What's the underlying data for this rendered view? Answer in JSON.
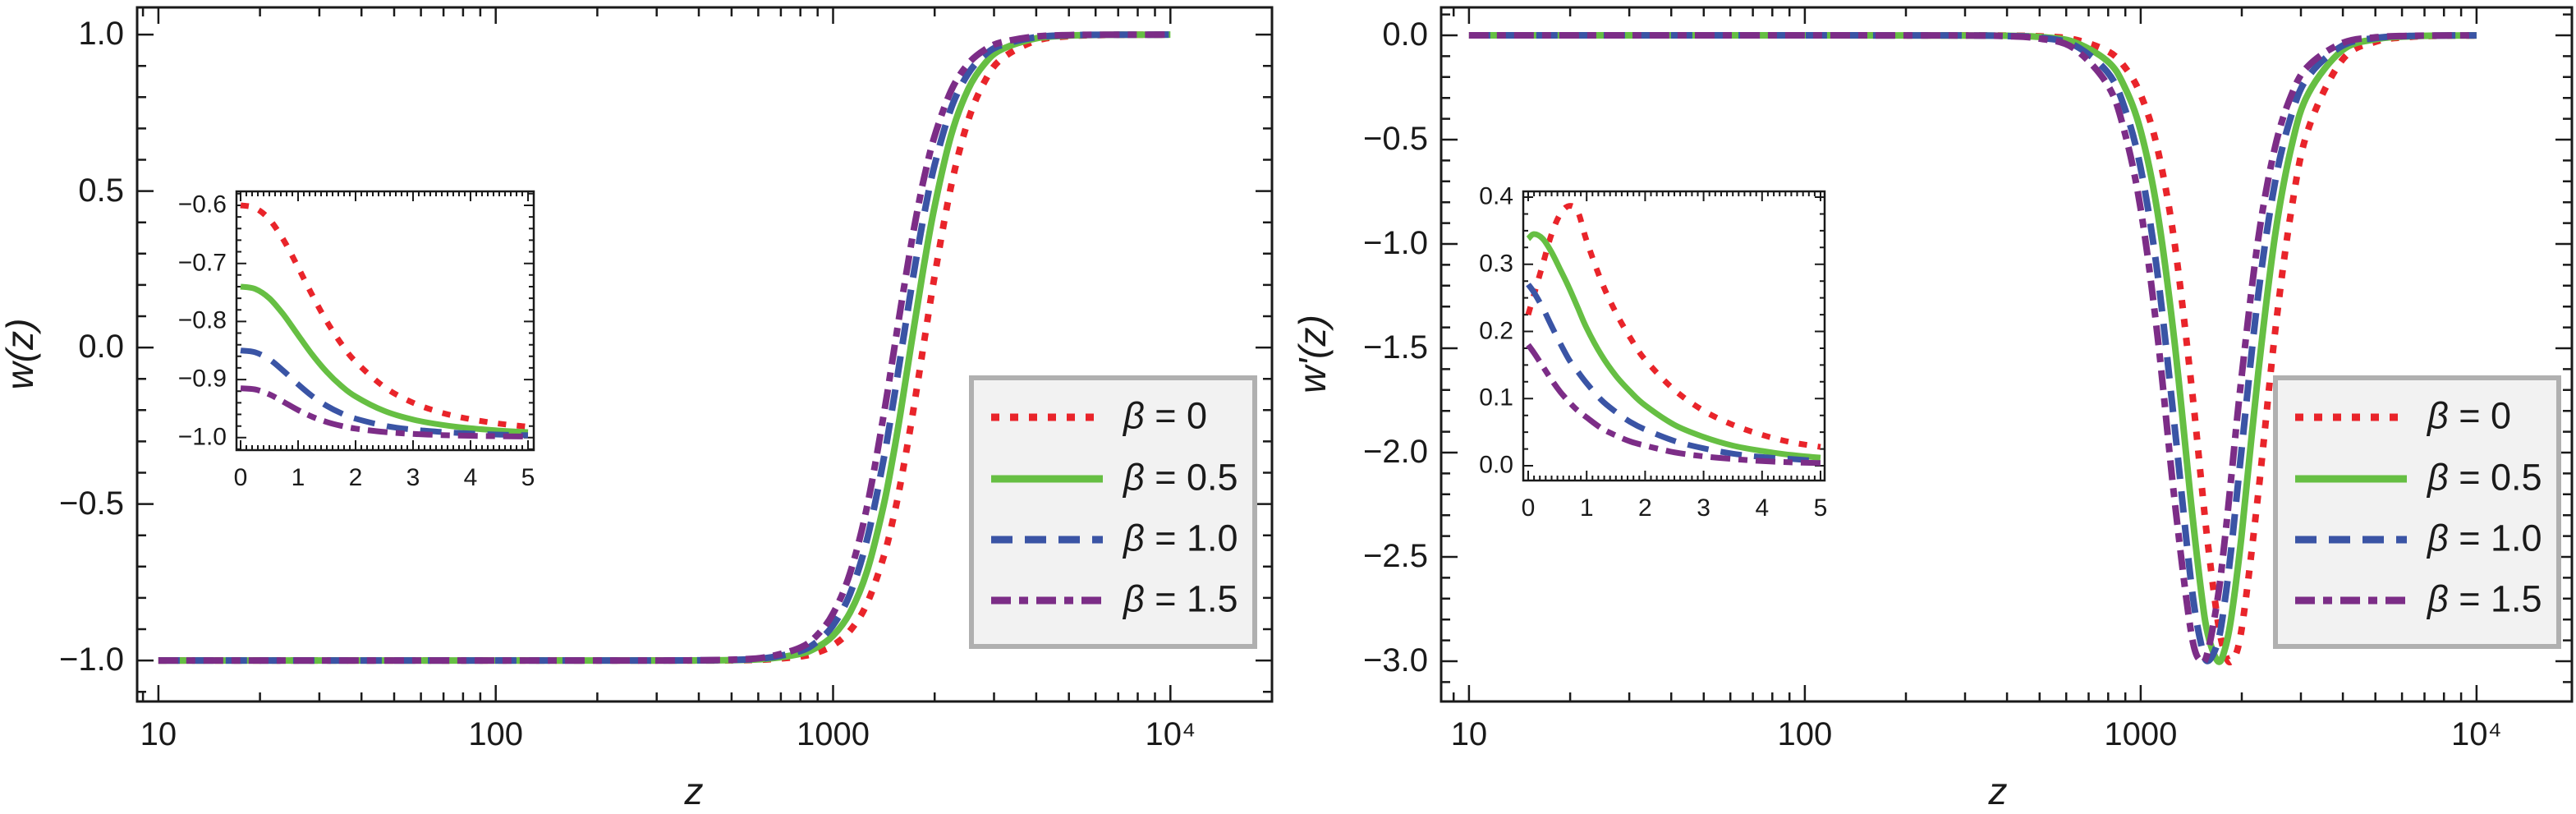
{
  "figure": {
    "background": "#ffffff",
    "ink": "#1a1a1a",
    "legend_bg": "#f2f2f2",
    "legend_border": "#b0b0b0",
    "series_labels": [
      "β = 0",
      "β = 0.5",
      "β = 1.0",
      "β = 1.5"
    ]
  },
  "chart_data": [
    {
      "id": "w-of-z",
      "type": "line",
      "xscale": "log",
      "xlabel": "z",
      "ylabel": "w(z)",
      "xlim_log": [
        0.937,
        4.301
      ],
      "ylim": [
        -1.131,
        1.087
      ],
      "grid": false,
      "legend_position": "lower-right",
      "x_ticks": [
        {
          "log": 1,
          "label": "10"
        },
        {
          "log": 2,
          "label": "100"
        },
        {
          "log": 3,
          "label": "1000"
        },
        {
          "log": 4,
          "label": "10⁴"
        }
      ],
      "y_ticks": [
        {
          "v": 1.0,
          "label": "1.0"
        },
        {
          "v": 0.5,
          "label": "0.5"
        },
        {
          "v": 0.0,
          "label": "0.0"
        },
        {
          "v": -0.5,
          "label": "−0.5"
        },
        {
          "v": -1.0,
          "label": "−1.0"
        }
      ],
      "y_minor_step": 0.1,
      "y_major_step": 0.5,
      "x_log": [
        1.0,
        1.5,
        2.0,
        2.3,
        2.5,
        2.6,
        2.7,
        2.8,
        2.9,
        2.95,
        3.0,
        3.05,
        3.1,
        3.15,
        3.18,
        3.2,
        3.23,
        3.25,
        3.27,
        3.3,
        3.35,
        3.4,
        3.45,
        3.5,
        3.6,
        3.7,
        3.8,
        3.9,
        4.0
      ],
      "series": [
        {
          "name": "β = 0",
          "color": "#e9242a",
          "style": "dotted",
          "values": [
            -1,
            -1,
            -1,
            -1,
            -1,
            -1,
            -0.9996,
            -0.9969,
            -0.9876,
            -0.9753,
            -0.9514,
            -0.9051,
            -0.8193,
            -0.6686,
            -0.538,
            -0.433,
            -0.2517,
            -0.1184,
            0.0194,
            0.2227,
            0.517,
            0.7247,
            0.8517,
            0.9229,
            0.98,
            0.995,
            0.9987,
            0.9997,
            0.9999
          ]
        },
        {
          "name": "β = 0.5",
          "color": "#66bf43",
          "style": "solid",
          "values": [
            -1,
            -1,
            -1,
            -1,
            -1,
            -0.9997,
            -0.9987,
            -0.9948,
            -0.9794,
            -0.9593,
            -0.9205,
            -0.8472,
            -0.7167,
            -0.5038,
            -0.3343,
            -0.2071,
            -0.0003,
            0.1338,
            0.2665,
            0.4463,
            0.6785,
            0.8247,
            0.9081,
            0.9528,
            0.9879,
            0.9969,
            0.9992,
            0.9998,
            1.0
          ]
        },
        {
          "name": "β = 1.0",
          "color": "#3a54a5",
          "style": "dashed",
          "values": [
            -1,
            -1,
            -1,
            -1,
            -0.9999,
            -0.9995,
            -0.9981,
            -0.9925,
            -0.9706,
            -0.9421,
            -0.8875,
            -0.7873,
            -0.6163,
            -0.3566,
            -0.1643,
            -0.0283,
            0.1767,
            0.3062,
            0.4259,
            0.5798,
            0.765,
            0.8748,
            0.9352,
            0.9669,
            0.9916,
            0.9979,
            0.9995,
            0.9999,
            1.0
          ]
        },
        {
          "name": "β = 1.5",
          "color": "#7c2d87",
          "style": "dashdot",
          "values": [
            -1,
            -1,
            -1,
            -1,
            -0.9999,
            -0.9993,
            -0.9974,
            -0.9898,
            -0.9602,
            -0.922,
            -0.85,
            -0.7216,
            -0.5119,
            -0.2157,
            -0.0118,
            0.1251,
            0.3206,
            0.4383,
            0.5433,
            0.6727,
            0.8214,
            0.9063,
            0.9519,
            0.9756,
            0.9938,
            0.9985,
            0.9996,
            0.9999,
            1.0
          ]
        }
      ],
      "inset": {
        "xlim": [
          -0.071,
          5.1
        ],
        "ylim": [
          -1.0215,
          -0.576
        ],
        "x_minor_step": 0.1,
        "y_minor_step": 0.02,
        "y_major_step": 0.1,
        "x_ticks": [
          {
            "v": 0,
            "label": "0"
          },
          {
            "v": 1,
            "label": "1"
          },
          {
            "v": 2,
            "label": "2"
          },
          {
            "v": 3,
            "label": "3"
          },
          {
            "v": 4,
            "label": "4"
          },
          {
            "v": 5,
            "label": "5"
          }
        ],
        "y_ticks": [
          {
            "v": -0.6,
            "label": "−0.6"
          },
          {
            "v": -0.7,
            "label": "−0.7"
          },
          {
            "v": -0.8,
            "label": "−0.8"
          },
          {
            "v": -0.9,
            "label": "−0.9"
          },
          {
            "v": -1.0,
            "label": "−1.0"
          }
        ],
        "x": [
          0,
          0.25,
          0.5,
          0.75,
          1,
          1.25,
          1.5,
          1.75,
          2,
          2.5,
          3,
          3.5,
          4,
          4.5,
          5
        ],
        "series": [
          {
            "name": "β = 0",
            "values": [
              -0.6,
              -0.6045,
              -0.624,
              -0.66,
              -0.7065,
              -0.7552,
              -0.8,
              -0.838,
              -0.869,
              -0.9128,
              -0.9399,
              -0.9571,
              -0.9683,
              -0.9759,
              -0.9812
            ]
          },
          {
            "name": "β = 0.5",
            "values": [
              -0.74,
              -0.7438,
              -0.76,
              -0.7886,
              -0.8234,
              -0.8576,
              -0.887,
              -0.9107,
              -0.9292,
              -0.9541,
              -0.9689,
              -0.978,
              -0.9839,
              -0.9878,
              -0.9905
            ]
          },
          {
            "name": "β = 1.0",
            "values": [
              -0.85,
              -0.8529,
              -0.8651,
              -0.8854,
              -0.9082,
              -0.9288,
              -0.9454,
              -0.958,
              -0.9673,
              -0.9794,
              -0.9862,
              -0.9903,
              -0.993,
              -0.9947,
              -0.9959
            ]
          },
          {
            "name": "β = 1.5",
            "values": [
              -0.915,
              -0.917,
              -0.9254,
              -0.9386,
              -0.9525,
              -0.9642,
              -0.9732,
              -0.9797,
              -0.9844,
              -0.9903,
              -0.9936,
              -0.9956,
              -0.9968,
              -0.9976,
              -0.9981
            ]
          }
        ]
      }
    },
    {
      "id": "wprime-of-z",
      "type": "line",
      "xscale": "log",
      "xlabel": "z",
      "ylabel": "w'(z)",
      "xlim_log": [
        0.917,
        4.284
      ],
      "ylim": [
        -3.193,
        0.134
      ],
      "grid": false,
      "legend_position": "lower-right",
      "x_ticks": [
        {
          "log": 1,
          "label": "10"
        },
        {
          "log": 2,
          "label": "100"
        },
        {
          "log": 3,
          "label": "1000"
        },
        {
          "log": 4,
          "label": "10⁴"
        }
      ],
      "y_ticks": [
        {
          "v": 0.0,
          "label": "0.0"
        },
        {
          "v": -0.5,
          "label": "−0.5"
        },
        {
          "v": -1.0,
          "label": "−1.0"
        },
        {
          "v": -1.5,
          "label": "−1.5"
        },
        {
          "v": -2.0,
          "label": "−2.0"
        },
        {
          "v": -2.5,
          "label": "−2.5"
        },
        {
          "v": -3.0,
          "label": "−3.0"
        }
      ],
      "y_minor_step": 0.1,
      "y_major_step": 0.5,
      "x_log": [
        1.0,
        1.5,
        2.0,
        2.3,
        2.5,
        2.6,
        2.7,
        2.8,
        2.9,
        2.95,
        3.0,
        3.05,
        3.1,
        3.15,
        3.18,
        3.2,
        3.23,
        3.25,
        3.27,
        3.3,
        3.35,
        3.4,
        3.45,
        3.5,
        3.6,
        3.7,
        3.8,
        3.9,
        4.0
      ],
      "series": [
        {
          "name": "β = 0",
          "color": "#e9242a",
          "style": "dotted",
          "values": [
            0,
            0,
            0,
            -0.0001,
            -0.0003,
            -0.0012,
            -0.0047,
            -0.0188,
            -0.0742,
            -0.1463,
            -0.2845,
            -0.5421,
            -0.9857,
            -1.6593,
            -2.1318,
            -2.4375,
            -2.81,
            -2.9577,
            -2.9988,
            -2.8511,
            -2.1977,
            -1.424,
            -0.8238,
            -0.4449,
            -0.1184,
            -0.0302,
            -0.0076,
            -0.0019,
            -0.0005
          ]
        },
        {
          "name": "β = 0.5",
          "color": "#66bf43",
          "style": "solid",
          "values": [
            0,
            0,
            0,
            -0.0002,
            -0.0005,
            -0.002,
            -0.0079,
            -0.0314,
            -0.1222,
            -0.2396,
            -0.4583,
            -0.846,
            -1.4594,
            -2.2393,
            -2.6647,
            -2.8713,
            -3.0,
            -2.9465,
            -2.787,
            -2.4023,
            -1.619,
            -0.9599,
            -0.5261,
            -0.2763,
            -0.0719,
            -0.0182,
            -0.0046,
            -0.0011,
            -0.0003
          ]
        },
        {
          "name": "β = 1.0",
          "color": "#3a54a5",
          "style": "dashed",
          "values": [
            0,
            0,
            0,
            -0.0002,
            -0.0007,
            -0.0029,
            -0.0114,
            -0.0451,
            -0.1743,
            -0.3374,
            -0.6368,
            -1.1399,
            -1.8598,
            -2.6208,
            -2.919,
            -2.9988,
            -2.9066,
            -2.7185,
            -2.456,
            -1.9917,
            -1.2447,
            -0.7043,
            -0.3763,
            -0.1951,
            -0.0502,
            -0.0127,
            -0.0032,
            -0.0008,
            -0.0002
          ]
        },
        {
          "name": "β = 1.5",
          "color": "#7c2d87",
          "style": "dashdot",
          "values": [
            0,
            0,
            0,
            -0.0003,
            -0.001,
            -0.0039,
            -0.0156,
            -0.0611,
            -0.2339,
            -0.4501,
            -0.8326,
            -1.4381,
            -2.2157,
            -2.8596,
            -2.9997,
            -2.9529,
            -2.692,
            -2.4236,
            -2.114,
            -1.6424,
            -0.9759,
            -0.5359,
            -0.2815,
            -0.1447,
            -0.037,
            -0.0094,
            -0.0024,
            -0.0006,
            -0.0002
          ]
        }
      ],
      "inset": {
        "xlim": [
          -0.084,
          5.07
        ],
        "ylim": [
          -0.022,
          0.4086
        ],
        "x_minor_step": 0.1,
        "y_minor_step": 0.025,
        "y_major_step": 0.1,
        "x_ticks": [
          {
            "v": 0,
            "label": "0"
          },
          {
            "v": 1,
            "label": "1"
          },
          {
            "v": 2,
            "label": "2"
          },
          {
            "v": 3,
            "label": "3"
          },
          {
            "v": 4,
            "label": "4"
          },
          {
            "v": 5,
            "label": "5"
          }
        ],
        "y_ticks": [
          {
            "v": 0.4,
            "label": "0.4"
          },
          {
            "v": 0.3,
            "label": "0.3"
          },
          {
            "v": 0.2,
            "label": "0.2"
          },
          {
            "v": 0.1,
            "label": "0.1"
          },
          {
            "v": 0.0,
            "label": "0.0"
          }
        ],
        "x": [
          0,
          0.1,
          0.25,
          0.4,
          0.55,
          0.7,
          0.85,
          1,
          1.25,
          1.5,
          1.75,
          2,
          2.5,
          3,
          3.5,
          4,
          4.5,
          5
        ],
        "series": [
          {
            "name": "β = 0",
            "values": [
              0.225,
              0.255,
              0.3,
              0.345,
              0.375,
              0.387,
              0.378,
              0.335,
              0.275,
              0.228,
              0.19,
              0.158,
              0.113,
              0.082,
              0.061,
              0.046,
              0.035,
              0.028
            ]
          },
          {
            "name": "β = 0.5",
            "values": [
              0.338,
              0.345,
              0.338,
              0.318,
              0.292,
              0.265,
              0.235,
              0.205,
              0.165,
              0.134,
              0.11,
              0.09,
              0.061,
              0.043,
              0.03,
              0.022,
              0.016,
              0.012
            ]
          },
          {
            "name": "β = 1.0",
            "values": [
              0.27,
              0.258,
              0.235,
              0.208,
              0.182,
              0.158,
              0.14,
              0.123,
              0.098,
              0.08,
              0.065,
              0.054,
              0.037,
              0.026,
              0.018,
              0.013,
              0.01,
              0.007
            ]
          },
          {
            "name": "β = 1.5",
            "values": [
              0.18,
              0.168,
              0.148,
              0.128,
              0.11,
              0.095,
              0.082,
              0.072,
              0.056,
              0.045,
              0.036,
              0.03,
              0.02,
              0.014,
              0.01,
              0.007,
              0.005,
              0.004
            ]
          }
        ]
      }
    }
  ]
}
